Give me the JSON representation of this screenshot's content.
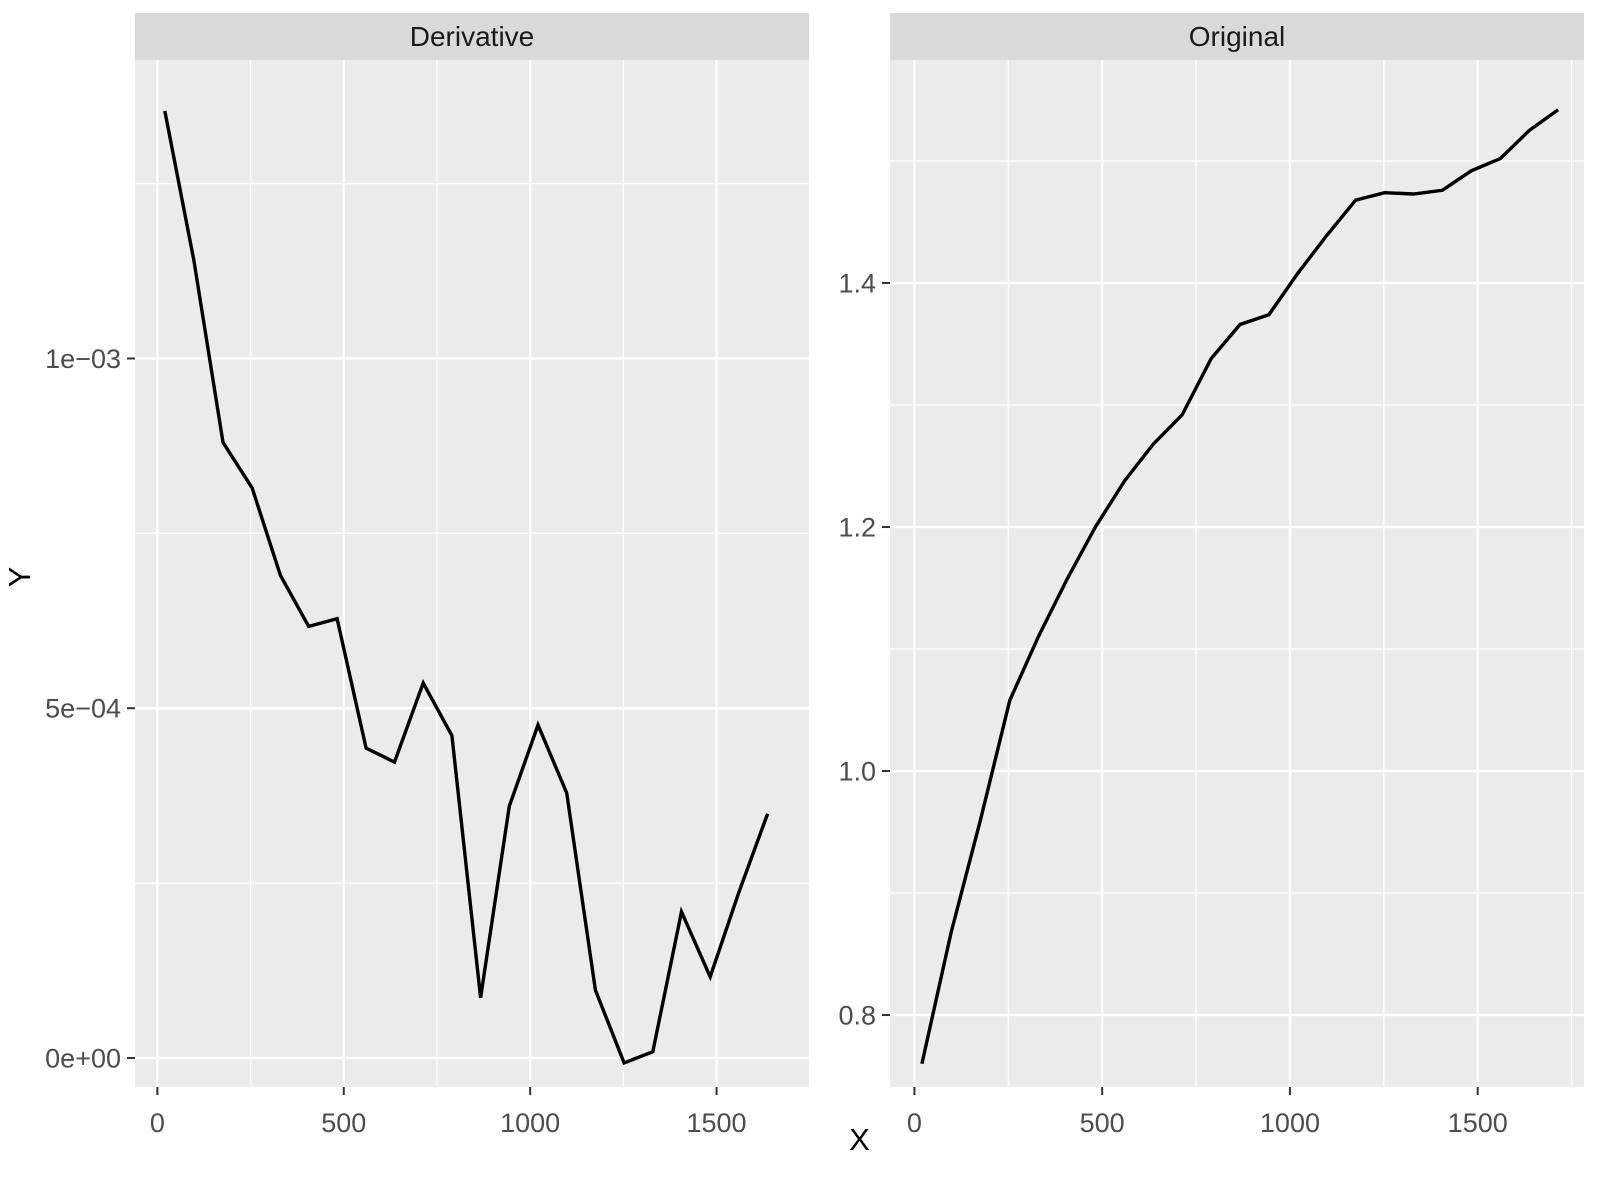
{
  "figure": {
    "x_title": "X",
    "y_title": "Y"
  },
  "style": {
    "panel_bg": "#EBEBEB",
    "strip_bg": "#D9D9D9",
    "grid_color": "#FFFFFF",
    "line_color": "#000000",
    "tick_label_color": "#4D4D4D",
    "tick_mark_color": "#333333",
    "strip_text_color": "#1A1A1A",
    "title_color": "#000000"
  },
  "chart_data": [
    {
      "type": "line",
      "facet": "Derivative",
      "title": "Derivative",
      "xlabel": "X",
      "ylabel": "Y",
      "grid": true,
      "legend": "none",
      "x": [
        20,
        98,
        176,
        254,
        330,
        406,
        482,
        560,
        636,
        713,
        790,
        867,
        944,
        1021,
        1098,
        1175,
        1252,
        1329,
        1406,
        1483,
        1560,
        1637
      ],
      "y": [
        0.001354,
        0.00114,
        0.00088,
        0.000815,
        0.00069,
        0.000617,
        0.000628,
        0.000443,
        0.000423,
        0.000536,
        0.000461,
        8.6e-05,
        0.00036,
        0.000476,
        0.000379,
        9.7e-05,
        -7e-06,
        9e-06,
        0.000209,
        0.000116,
        0.000237,
        0.000349
      ],
      "xlim": [
        -60,
        1748
      ],
      "ylim": [
        -4.15e-05,
        0.0014267
      ],
      "x_major": {
        "values": [
          0,
          500,
          1000,
          1500
        ],
        "labels": [
          "0",
          "500",
          "1000",
          "1500"
        ]
      },
      "x_minor": [
        250,
        750,
        1250,
        1750
      ],
      "y_major": {
        "values": [
          0,
          0.0005,
          0.001
        ],
        "labels": [
          "0e+00",
          "5e−04",
          "1e−03"
        ]
      },
      "y_minor": [
        0.00025,
        0.00075,
        0.00125
      ]
    },
    {
      "type": "line",
      "facet": "Original",
      "title": "Original",
      "xlabel": "X",
      "ylabel": "Y",
      "grid": true,
      "legend": "none",
      "x": [
        20,
        98,
        176,
        254,
        330,
        406,
        482,
        560,
        636,
        713,
        790,
        867,
        944,
        1021,
        1098,
        1175,
        1252,
        1329,
        1406,
        1483,
        1560,
        1637,
        1714
      ],
      "y": [
        0.76,
        0.868,
        0.96,
        1.058,
        1.11,
        1.157,
        1.2,
        1.238,
        1.268,
        1.292,
        1.338,
        1.366,
        1.374,
        1.408,
        1.439,
        1.468,
        1.474,
        1.473,
        1.476,
        1.492,
        1.502,
        1.525,
        1.542
      ],
      "xlim": [
        -65,
        1783
      ],
      "ylim": [
        0.741,
        1.5828
      ],
      "x_major": {
        "values": [
          0,
          500,
          1000,
          1500
        ],
        "labels": [
          "0",
          "500",
          "1000",
          "1500"
        ]
      },
      "x_minor": [
        250,
        750,
        1250,
        1750
      ],
      "y_major": {
        "values": [
          0.8,
          1.0,
          1.2,
          1.4
        ],
        "labels": [
          "0.8",
          "1.0",
          "1.2",
          "1.4"
        ]
      },
      "y_minor": [
        0.9,
        1.1,
        1.3,
        1.5
      ]
    }
  ]
}
